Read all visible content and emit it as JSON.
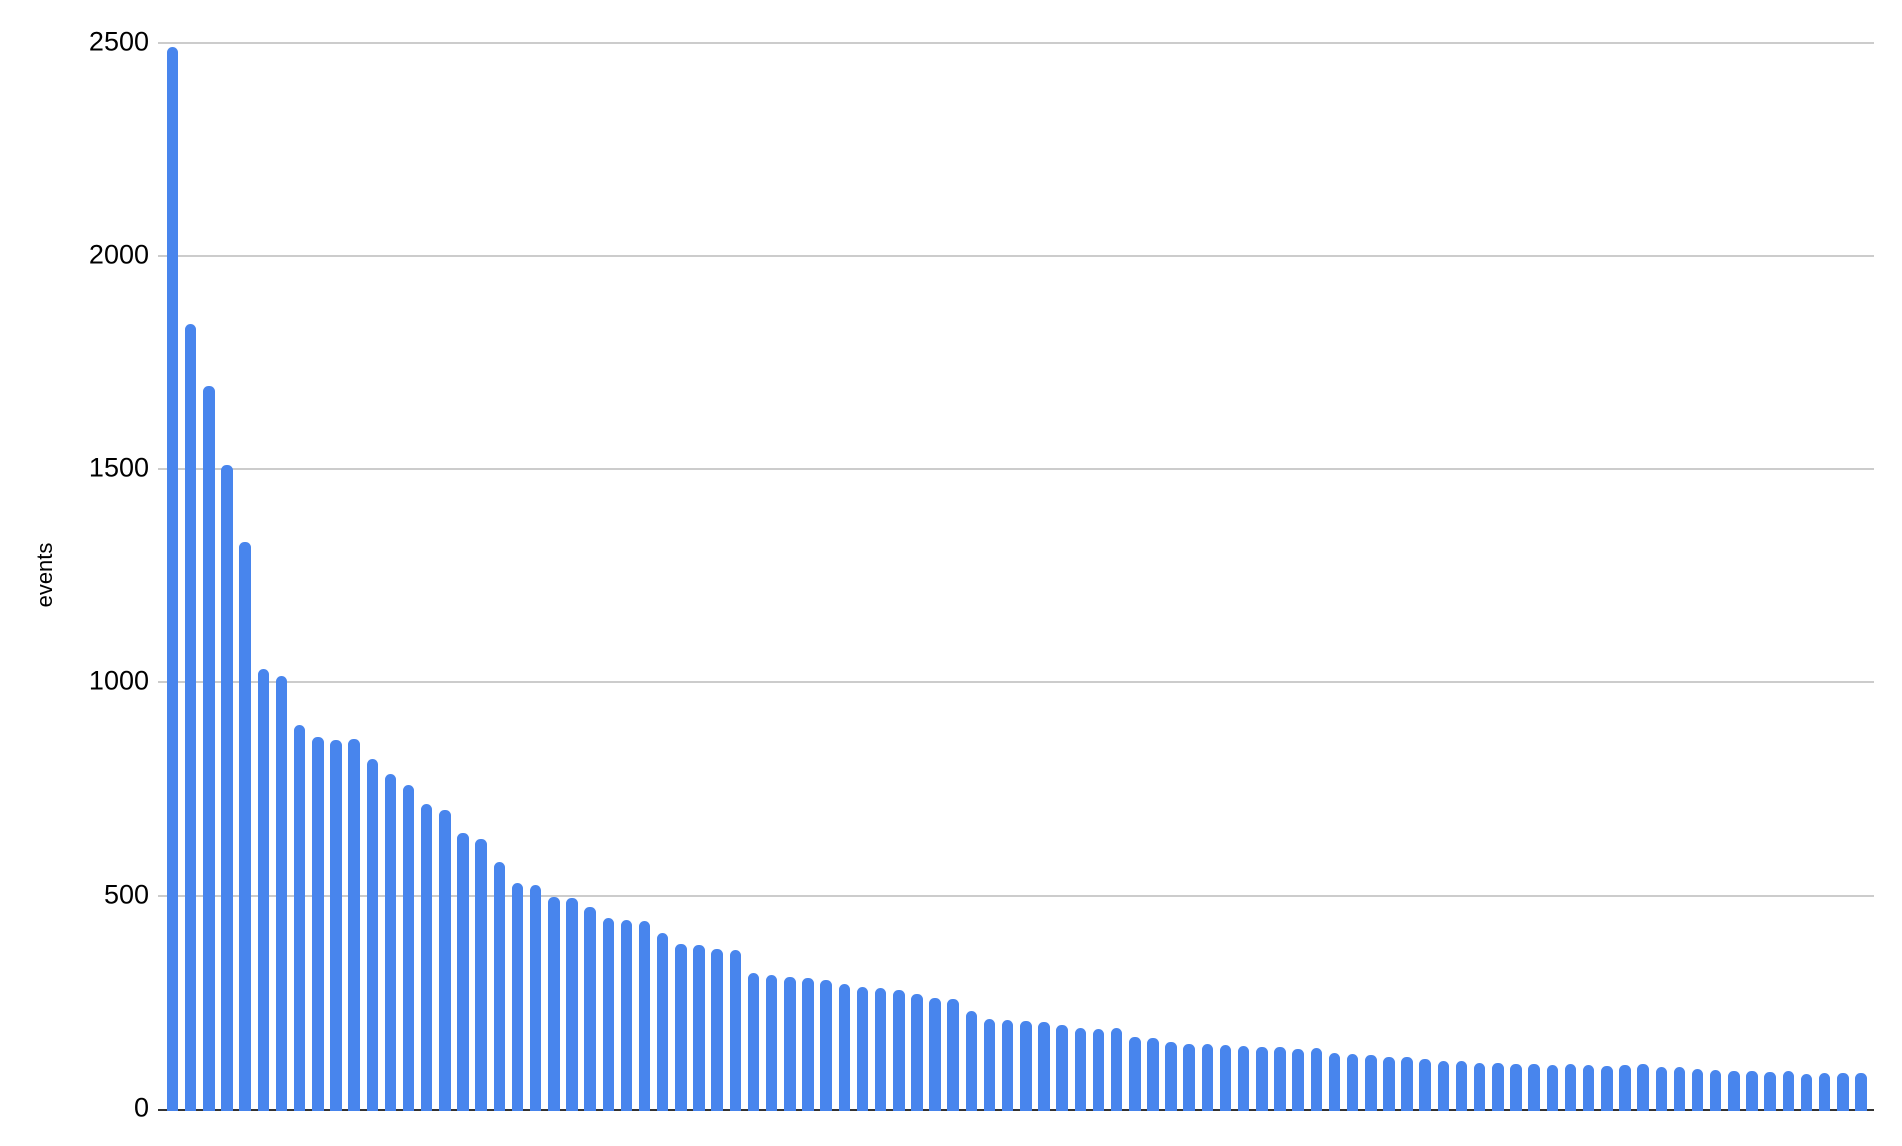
{
  "chart_data": {
    "type": "bar",
    "title": "",
    "xlabel": "",
    "ylabel": "events",
    "ylim": [
      0,
      2500
    ],
    "y_ticks": [
      0,
      500,
      1000,
      1500,
      2000,
      2500
    ],
    "grid": true,
    "legend": "none",
    "x_axis_labels": "none",
    "series_name": "events",
    "values": [
      2490,
      1840,
      1695,
      1510,
      1330,
      1032,
      1016,
      900,
      872,
      866,
      868,
      820,
      786,
      760,
      716,
      700,
      646,
      634,
      578,
      531,
      526,
      498,
      494,
      473,
      448,
      444,
      440,
      412,
      386,
      384,
      374,
      372,
      318,
      314,
      309,
      307,
      302,
      292,
      286,
      284,
      278,
      269,
      260,
      258,
      229,
      211,
      209,
      206,
      204,
      197,
      190,
      188,
      190,
      169,
      167,
      156,
      153,
      152,
      151,
      148,
      146,
      146,
      141,
      142,
      131,
      128,
      127,
      122,
      122,
      118,
      113,
      113,
      109,
      108,
      106,
      105,
      104,
      106,
      104,
      101,
      104,
      106,
      99,
      99,
      94,
      92,
      89,
      89,
      87,
      88,
      82,
      84,
      85,
      85
    ]
  },
  "colors": {
    "bar": "#4885ed",
    "gridline": "#cccccc",
    "axis_line": "#333333",
    "text": "#000000",
    "background": "#ffffff"
  }
}
